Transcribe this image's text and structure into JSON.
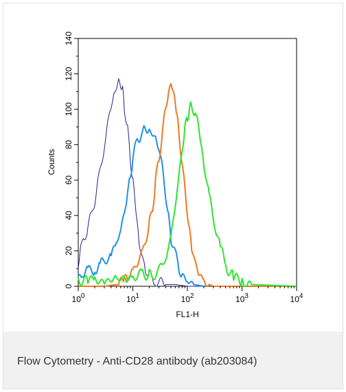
{
  "caption": "Flow Cytometry - Anti-CD28 antibody (ab203084)",
  "chart_data": {
    "type": "line",
    "title": "",
    "xlabel": "FL1-H",
    "ylabel": "Counts",
    "xscale": "log",
    "xlim": [
      1,
      10000
    ],
    "ylim": [
      0,
      140
    ],
    "yticks": [
      "0",
      "20",
      "40",
      "60",
      "80",
      "100",
      "120",
      "140"
    ],
    "xticks": [
      {
        "base": "10",
        "exp": "0"
      },
      {
        "base": "10",
        "exp": "1"
      },
      {
        "base": "10",
        "exp": "2"
      },
      {
        "base": "10",
        "exp": "3"
      },
      {
        "base": "10",
        "exp": "4"
      }
    ],
    "grid": false,
    "legend": "none",
    "series": [
      {
        "color": "#1f1f8f",
        "width": 1.0,
        "x": [
          1,
          1.1,
          1.3,
          1.5,
          1.8,
          2.1,
          2.5,
          3,
          3.5,
          4,
          4.5,
          5,
          5.5,
          6,
          6.5,
          7,
          8,
          9,
          10,
          11,
          12,
          13,
          15,
          17,
          20,
          25,
          30,
          40,
          60,
          100,
          1000,
          10000
        ],
        "y": [
          10,
          22,
          27,
          33,
          42,
          52,
          64,
          80,
          92,
          102,
          108,
          112,
          116,
          114,
          110,
          102,
          88,
          72,
          60,
          48,
          36,
          25,
          15,
          10,
          6,
          3,
          2,
          1,
          1,
          0,
          0,
          0
        ]
      },
      {
        "color": "#1e90e8",
        "width": 2.0,
        "x": [
          1,
          1.2,
          1.5,
          2,
          2.5,
          3,
          4,
          5,
          6,
          7,
          8,
          9,
          10,
          12,
          14,
          16,
          18,
          20,
          23,
          26,
          30,
          35,
          40,
          45,
          50,
          60,
          70,
          80,
          100,
          130,
          200,
          300,
          1000,
          10000
        ],
        "y": [
          4,
          8,
          8,
          10,
          12,
          14,
          18,
          24,
          32,
          42,
          52,
          62,
          72,
          82,
          86,
          88,
          89,
          87,
          86,
          84,
          78,
          66,
          52,
          38,
          28,
          18,
          10,
          6,
          3,
          1,
          0,
          0,
          0,
          0
        ]
      },
      {
        "color": "#f07820",
        "width": 2.0,
        "x": [
          1,
          3,
          5,
          7,
          8,
          10,
          12,
          15,
          18,
          20,
          23,
          26,
          30,
          35,
          40,
          45,
          50,
          55,
          60,
          65,
          70,
          80,
          90,
          100,
          110,
          120,
          140,
          160,
          200,
          250,
          300,
          400,
          1000,
          10000
        ],
        "y": [
          0,
          0,
          1,
          3,
          5,
          9,
          12,
          20,
          28,
          35,
          45,
          58,
          72,
          88,
          100,
          110,
          114,
          110,
          104,
          96,
          86,
          70,
          54,
          42,
          30,
          22,
          13,
          7,
          3,
          1,
          0,
          0,
          0,
          0
        ]
      },
      {
        "color": "#2ee52e",
        "width": 2.0,
        "x": [
          1,
          1.5,
          2,
          3,
          5,
          8,
          10,
          12,
          15,
          18,
          20,
          25,
          30,
          40,
          50,
          60,
          70,
          80,
          90,
          100,
          110,
          120,
          140,
          160,
          180,
          200,
          250,
          300,
          400,
          500,
          700,
          1000,
          1500,
          10000
        ],
        "y": [
          3,
          4,
          3,
          3,
          4,
          4,
          5,
          6,
          7,
          7,
          6,
          7,
          9,
          16,
          28,
          46,
          62,
          78,
          88,
          96,
          100,
          102,
          98,
          90,
          80,
          68,
          52,
          38,
          22,
          12,
          5,
          2,
          1,
          0
        ]
      }
    ]
  }
}
